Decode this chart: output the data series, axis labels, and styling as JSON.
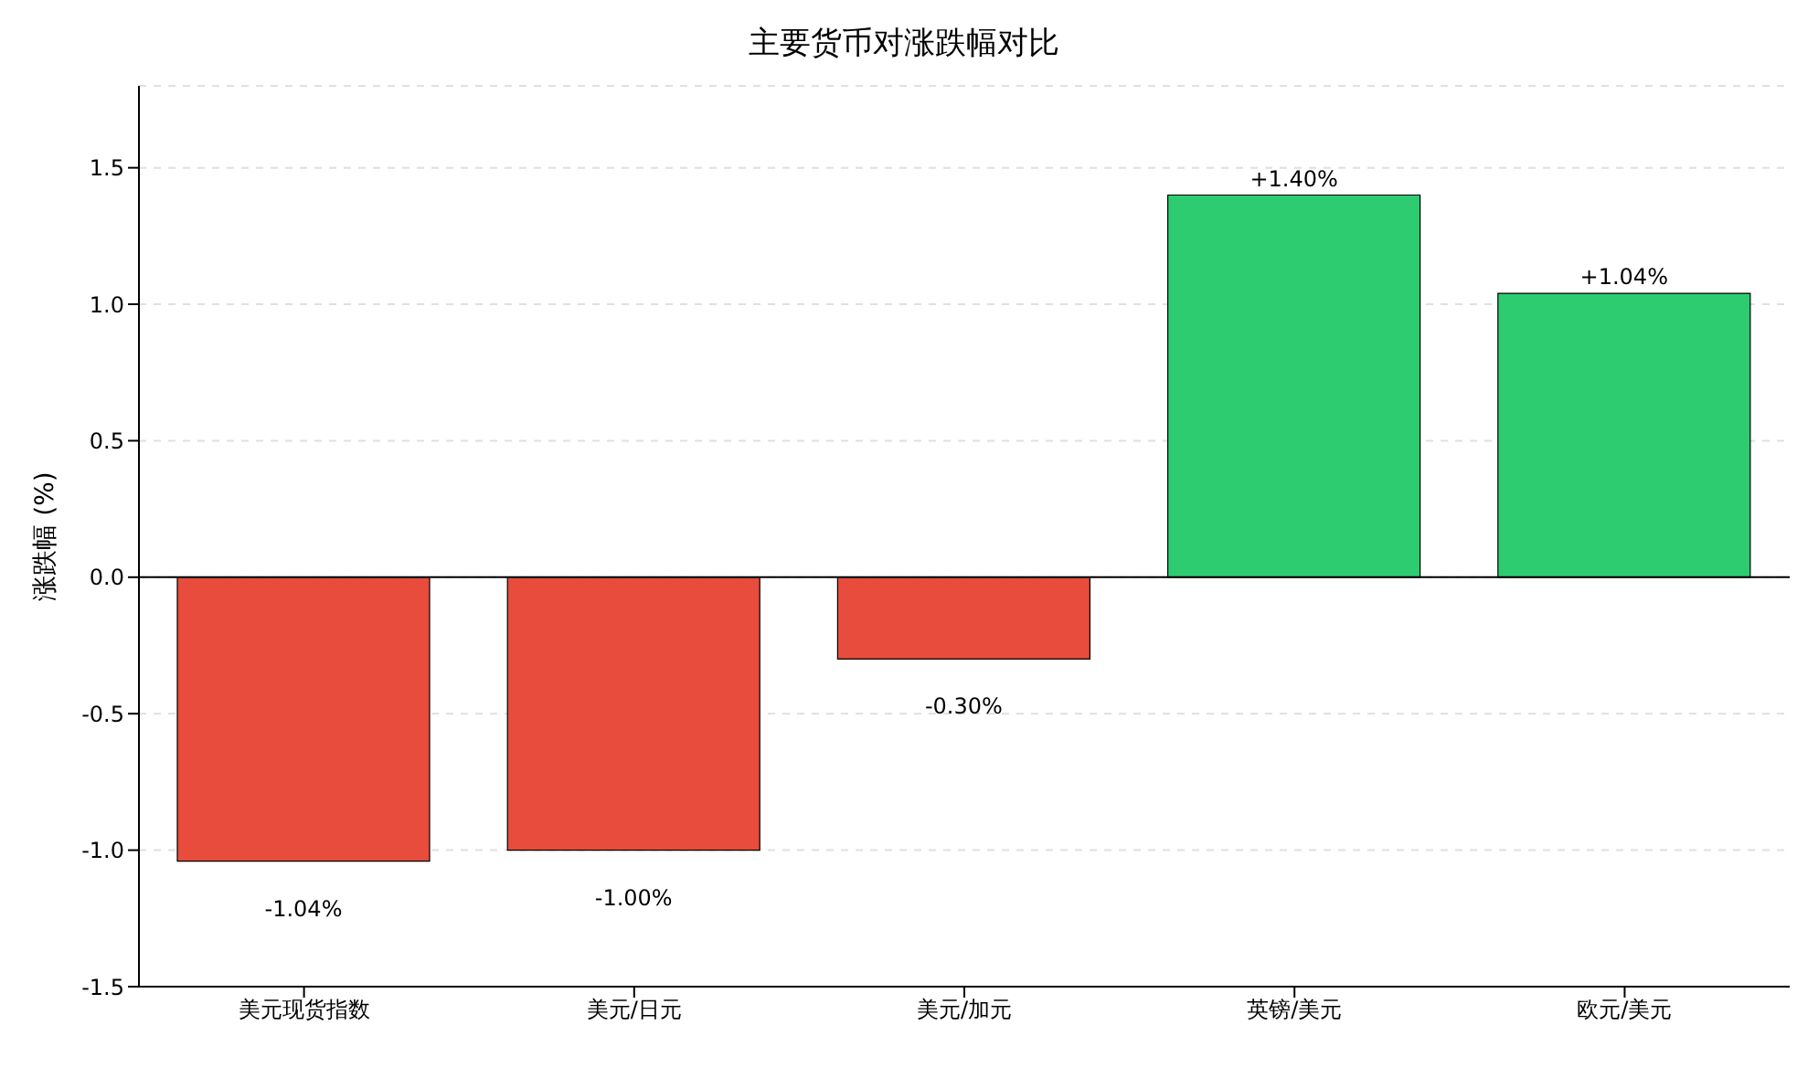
{
  "chart_data": {
    "type": "bar",
    "title": "主要货币对涨跌幅对比",
    "ylabel": "涨跌幅 (%)",
    "categories": [
      "美元现货指数",
      "美元/日元",
      "美元/加元",
      "英镑/美元",
      "欧元/美元"
    ],
    "values": [
      -1.04,
      -1.0,
      -0.3,
      1.4,
      1.04
    ],
    "colors": [
      "#e74c3c",
      "#e74c3c",
      "#e74c3c",
      "#2ecc71",
      "#2ecc71"
    ],
    "value_labels": [
      "-1.04%",
      "-1.00%",
      "-0.30%",
      "+1.40%",
      "+1.04%"
    ],
    "ylim": [
      -1.5,
      1.8
    ],
    "yticks": [
      {
        "value": -1.5,
        "label": "-1.5"
      },
      {
        "value": -1,
        "label": "-1.0"
      },
      {
        "value": -0.5,
        "label": "-0.5"
      },
      {
        "value": 0,
        "label": "0.0"
      },
      {
        "value": 0.5,
        "label": "0.5"
      },
      {
        "value": 1,
        "label": "1.0"
      },
      {
        "value": 1.5,
        "label": "1.5"
      }
    ],
    "grid": "y",
    "ref_lines": [
      {
        "axis": "y",
        "value": 0,
        "color": "#000000"
      }
    ]
  }
}
